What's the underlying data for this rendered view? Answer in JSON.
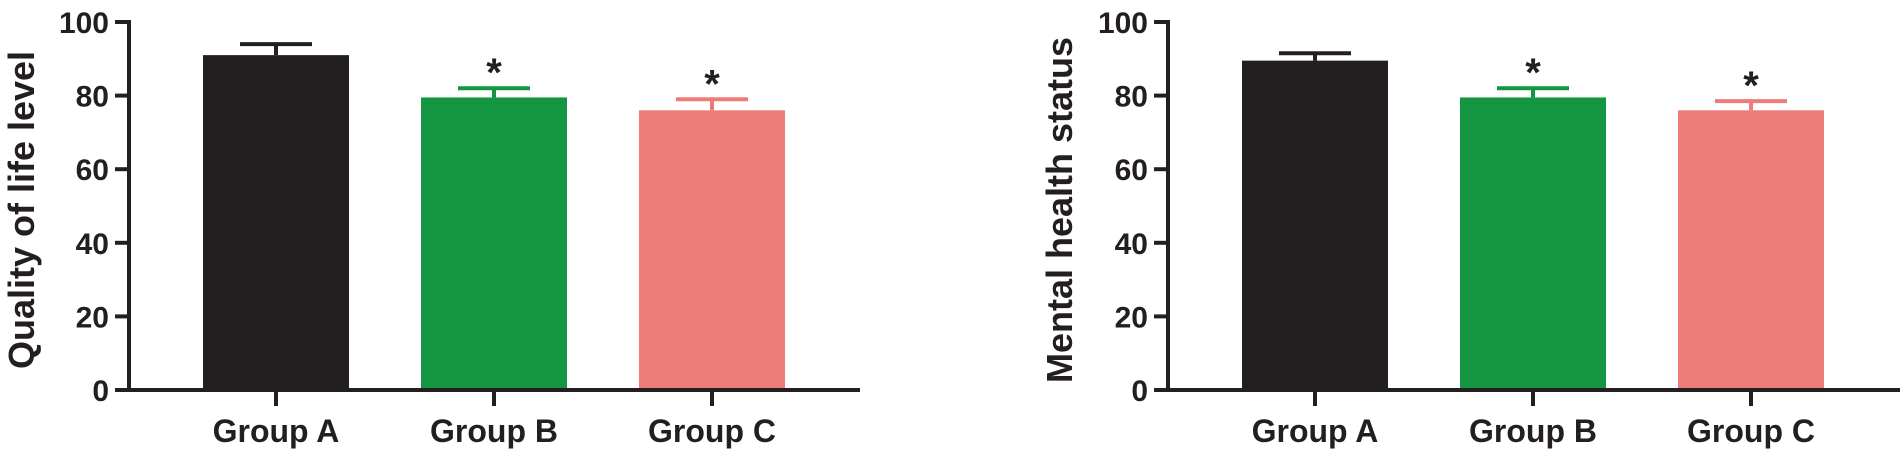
{
  "chart_data": [
    {
      "type": "bar",
      "title": "",
      "ylabel": "Quality of life level",
      "xlabel": "",
      "ylim": [
        0,
        100
      ],
      "yticks": [
        0,
        20,
        40,
        60,
        80,
        100
      ],
      "categories": [
        "Group A",
        "Group B",
        "Group C"
      ],
      "values": [
        91,
        79.5,
        76
      ],
      "errors": [
        3,
        2.5,
        3
      ],
      "annotations": [
        "",
        "*",
        "*"
      ],
      "colors": [
        "#231f20",
        "#139541",
        "#ed7b78"
      ],
      "grid": false
    },
    {
      "type": "bar",
      "title": "",
      "ylabel": "Mental health status",
      "xlabel": "",
      "ylim": [
        0,
        100
      ],
      "yticks": [
        0,
        20,
        40,
        60,
        80,
        100
      ],
      "categories": [
        "Group A",
        "Group B",
        "Group C"
      ],
      "values": [
        89.5,
        79.5,
        76
      ],
      "errors": [
        2,
        2.5,
        2.5
      ],
      "annotations": [
        "",
        "*",
        "*"
      ],
      "colors": [
        "#231f20",
        "#139541",
        "#ed7b78"
      ],
      "grid": false
    }
  ]
}
